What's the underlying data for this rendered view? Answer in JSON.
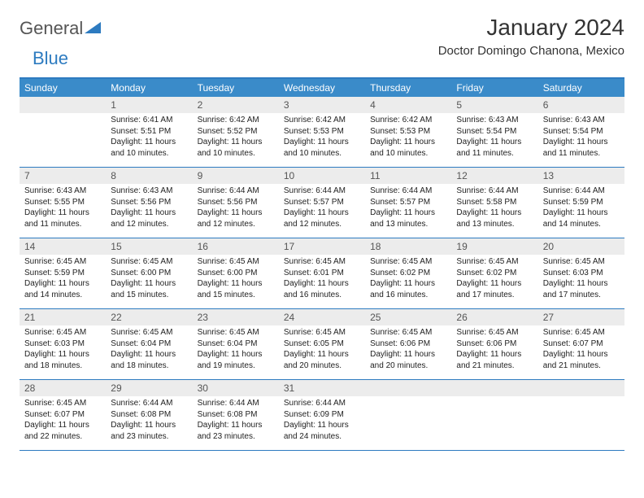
{
  "logo": {
    "word1": "General",
    "word2": "Blue"
  },
  "title": "January 2024",
  "location": "Doctor Domingo Chanona, Mexico",
  "colors": {
    "header_bg": "#3a8bc9",
    "border": "#2d7bc0",
    "daynum_bg": "#ececec",
    "text": "#222222"
  },
  "daysOfWeek": [
    "Sunday",
    "Monday",
    "Tuesday",
    "Wednesday",
    "Thursday",
    "Friday",
    "Saturday"
  ],
  "weeks": [
    [
      {
        "n": "",
        "lines": []
      },
      {
        "n": "1",
        "lines": [
          "Sunrise: 6:41 AM",
          "Sunset: 5:51 PM",
          "Daylight: 11 hours",
          "and 10 minutes."
        ]
      },
      {
        "n": "2",
        "lines": [
          "Sunrise: 6:42 AM",
          "Sunset: 5:52 PM",
          "Daylight: 11 hours",
          "and 10 minutes."
        ]
      },
      {
        "n": "3",
        "lines": [
          "Sunrise: 6:42 AM",
          "Sunset: 5:53 PM",
          "Daylight: 11 hours",
          "and 10 minutes."
        ]
      },
      {
        "n": "4",
        "lines": [
          "Sunrise: 6:42 AM",
          "Sunset: 5:53 PM",
          "Daylight: 11 hours",
          "and 10 minutes."
        ]
      },
      {
        "n": "5",
        "lines": [
          "Sunrise: 6:43 AM",
          "Sunset: 5:54 PM",
          "Daylight: 11 hours",
          "and 11 minutes."
        ]
      },
      {
        "n": "6",
        "lines": [
          "Sunrise: 6:43 AM",
          "Sunset: 5:54 PM",
          "Daylight: 11 hours",
          "and 11 minutes."
        ]
      }
    ],
    [
      {
        "n": "7",
        "lines": [
          "Sunrise: 6:43 AM",
          "Sunset: 5:55 PM",
          "Daylight: 11 hours",
          "and 11 minutes."
        ]
      },
      {
        "n": "8",
        "lines": [
          "Sunrise: 6:43 AM",
          "Sunset: 5:56 PM",
          "Daylight: 11 hours",
          "and 12 minutes."
        ]
      },
      {
        "n": "9",
        "lines": [
          "Sunrise: 6:44 AM",
          "Sunset: 5:56 PM",
          "Daylight: 11 hours",
          "and 12 minutes."
        ]
      },
      {
        "n": "10",
        "lines": [
          "Sunrise: 6:44 AM",
          "Sunset: 5:57 PM",
          "Daylight: 11 hours",
          "and 12 minutes."
        ]
      },
      {
        "n": "11",
        "lines": [
          "Sunrise: 6:44 AM",
          "Sunset: 5:57 PM",
          "Daylight: 11 hours",
          "and 13 minutes."
        ]
      },
      {
        "n": "12",
        "lines": [
          "Sunrise: 6:44 AM",
          "Sunset: 5:58 PM",
          "Daylight: 11 hours",
          "and 13 minutes."
        ]
      },
      {
        "n": "13",
        "lines": [
          "Sunrise: 6:44 AM",
          "Sunset: 5:59 PM",
          "Daylight: 11 hours",
          "and 14 minutes."
        ]
      }
    ],
    [
      {
        "n": "14",
        "lines": [
          "Sunrise: 6:45 AM",
          "Sunset: 5:59 PM",
          "Daylight: 11 hours",
          "and 14 minutes."
        ]
      },
      {
        "n": "15",
        "lines": [
          "Sunrise: 6:45 AM",
          "Sunset: 6:00 PM",
          "Daylight: 11 hours",
          "and 15 minutes."
        ]
      },
      {
        "n": "16",
        "lines": [
          "Sunrise: 6:45 AM",
          "Sunset: 6:00 PM",
          "Daylight: 11 hours",
          "and 15 minutes."
        ]
      },
      {
        "n": "17",
        "lines": [
          "Sunrise: 6:45 AM",
          "Sunset: 6:01 PM",
          "Daylight: 11 hours",
          "and 16 minutes."
        ]
      },
      {
        "n": "18",
        "lines": [
          "Sunrise: 6:45 AM",
          "Sunset: 6:02 PM",
          "Daylight: 11 hours",
          "and 16 minutes."
        ]
      },
      {
        "n": "19",
        "lines": [
          "Sunrise: 6:45 AM",
          "Sunset: 6:02 PM",
          "Daylight: 11 hours",
          "and 17 minutes."
        ]
      },
      {
        "n": "20",
        "lines": [
          "Sunrise: 6:45 AM",
          "Sunset: 6:03 PM",
          "Daylight: 11 hours",
          "and 17 minutes."
        ]
      }
    ],
    [
      {
        "n": "21",
        "lines": [
          "Sunrise: 6:45 AM",
          "Sunset: 6:03 PM",
          "Daylight: 11 hours",
          "and 18 minutes."
        ]
      },
      {
        "n": "22",
        "lines": [
          "Sunrise: 6:45 AM",
          "Sunset: 6:04 PM",
          "Daylight: 11 hours",
          "and 18 minutes."
        ]
      },
      {
        "n": "23",
        "lines": [
          "Sunrise: 6:45 AM",
          "Sunset: 6:04 PM",
          "Daylight: 11 hours",
          "and 19 minutes."
        ]
      },
      {
        "n": "24",
        "lines": [
          "Sunrise: 6:45 AM",
          "Sunset: 6:05 PM",
          "Daylight: 11 hours",
          "and 20 minutes."
        ]
      },
      {
        "n": "25",
        "lines": [
          "Sunrise: 6:45 AM",
          "Sunset: 6:06 PM",
          "Daylight: 11 hours",
          "and 20 minutes."
        ]
      },
      {
        "n": "26",
        "lines": [
          "Sunrise: 6:45 AM",
          "Sunset: 6:06 PM",
          "Daylight: 11 hours",
          "and 21 minutes."
        ]
      },
      {
        "n": "27",
        "lines": [
          "Sunrise: 6:45 AM",
          "Sunset: 6:07 PM",
          "Daylight: 11 hours",
          "and 21 minutes."
        ]
      }
    ],
    [
      {
        "n": "28",
        "lines": [
          "Sunrise: 6:45 AM",
          "Sunset: 6:07 PM",
          "Daylight: 11 hours",
          "and 22 minutes."
        ]
      },
      {
        "n": "29",
        "lines": [
          "Sunrise: 6:44 AM",
          "Sunset: 6:08 PM",
          "Daylight: 11 hours",
          "and 23 minutes."
        ]
      },
      {
        "n": "30",
        "lines": [
          "Sunrise: 6:44 AM",
          "Sunset: 6:08 PM",
          "Daylight: 11 hours",
          "and 23 minutes."
        ]
      },
      {
        "n": "31",
        "lines": [
          "Sunrise: 6:44 AM",
          "Sunset: 6:09 PM",
          "Daylight: 11 hours",
          "and 24 minutes."
        ]
      },
      {
        "n": "",
        "lines": []
      },
      {
        "n": "",
        "lines": []
      },
      {
        "n": "",
        "lines": []
      }
    ]
  ]
}
